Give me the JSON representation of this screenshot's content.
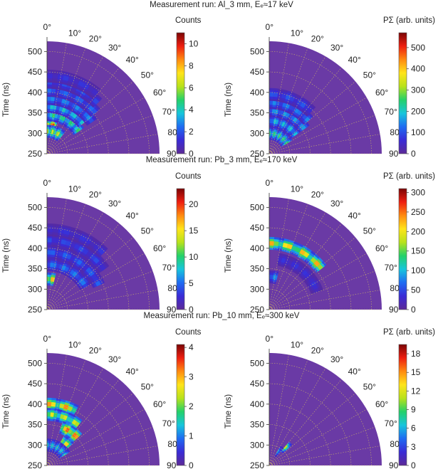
{
  "runs": [
    {
      "title": "Measurement run: Al_3 mm, Eₑ≈17 keV",
      "left": {
        "cb_label": "Counts",
        "cb_max": 11,
        "cb_ticks": [
          0,
          2,
          4,
          6,
          8,
          10
        ]
      },
      "right": {
        "cb_label": "PΣ  (arb. units)",
        "cb_max": 570,
        "cb_ticks": [
          0,
          100,
          200,
          300,
          400,
          500
        ]
      }
    },
    {
      "title": "Measurement run: Pb_3 mm, Eₑ≈170 keV",
      "left": {
        "cb_label": "Counts",
        "cb_max": 23,
        "cb_ticks": [
          0,
          5,
          10,
          15,
          20
        ]
      },
      "right": {
        "cb_label": "PΣ  (arb. units)",
        "cb_max": 310,
        "cb_ticks": [
          0,
          50,
          100,
          150,
          200,
          250,
          300
        ]
      }
    },
    {
      "title": "Measurement run: Pb_10 mm, Eₑ≈300 keV",
      "left": {
        "cb_label": "Counts",
        "cb_max": 4.1,
        "cb_ticks": [
          0,
          1,
          2,
          3,
          4
        ]
      },
      "right": {
        "cb_label": "PΣ  (arb. units)",
        "cb_max": 19.5,
        "cb_ticks": [
          0,
          3,
          6,
          9,
          12,
          15,
          18
        ]
      }
    }
  ],
  "chart_data": {
    "type": "heatmap",
    "coordinate_system": "polar quarter-plane (angle 0°–90°, radius = time)",
    "ylabel": "Time (ns)",
    "time_ticks": [
      250,
      300,
      350,
      400,
      450,
      500
    ],
    "time_range": [
      250,
      525
    ],
    "angle_ticks": [
      "0°",
      "10°",
      "20°",
      "30°",
      "40°",
      "50°",
      "60°",
      "70°",
      "80°",
      "90°"
    ],
    "angle_range": [
      0,
      90
    ],
    "colormap": [
      "#5c2a96",
      "#3a2bd6",
      "#1f6bf2",
      "#17c5dc",
      "#24d16a",
      "#b8e21b",
      "#ffe41a",
      "#ff8a10",
      "#ee1e10",
      "#7a0505"
    ],
    "background_color": "#6a3aa5",
    "panels": [
      {
        "run": "Al_3 mm",
        "quantity": "Counts",
        "max": 11,
        "features": [
          {
            "time": 320,
            "angle_from": 0,
            "angle_to": 18,
            "value": 10
          },
          {
            "time": 305,
            "angle_from": 0,
            "angle_to": 40,
            "value": 7
          },
          {
            "time": 345,
            "angle_from": 0,
            "angle_to": 55,
            "value": 5
          },
          {
            "time": 365,
            "angle_from": 0,
            "angle_to": 50,
            "value": 4
          },
          {
            "time": 385,
            "angle_from": 0,
            "angle_to": 55,
            "value": 3
          },
          {
            "time": 405,
            "angle_from": 0,
            "angle_to": 50,
            "value": 2.5
          },
          {
            "time": 425,
            "angle_from": 0,
            "angle_to": 45,
            "value": 2
          },
          {
            "time": 440,
            "angle_from": 0,
            "angle_to": 40,
            "value": 1.5
          }
        ]
      },
      {
        "run": "Al_3 mm",
        "quantity": "PΣ",
        "max": 570,
        "features": [
          {
            "time": 300,
            "angle_from": 0,
            "angle_to": 60,
            "value": 260
          },
          {
            "time": 330,
            "angle_from": 0,
            "angle_to": 55,
            "value": 200
          },
          {
            "time": 355,
            "angle_from": 0,
            "angle_to": 55,
            "value": 170
          },
          {
            "time": 375,
            "angle_from": 0,
            "angle_to": 50,
            "value": 150
          },
          {
            "time": 395,
            "angle_from": 0,
            "angle_to": 45,
            "value": 110
          }
        ]
      },
      {
        "run": "Pb_3 mm",
        "quantity": "Counts",
        "max": 23,
        "features": [
          {
            "time": 325,
            "angle_from": 0,
            "angle_to": 14,
            "value": 18
          },
          {
            "time": 360,
            "angle_from": 0,
            "angle_to": 60,
            "value": 6
          },
          {
            "time": 390,
            "angle_from": 0,
            "angle_to": 65,
            "value": 5
          },
          {
            "time": 420,
            "angle_from": 0,
            "angle_to": 55,
            "value": 4
          },
          {
            "time": 445,
            "angle_from": 0,
            "angle_to": 45,
            "value": 3
          }
        ]
      },
      {
        "run": "Pb_3 mm",
        "quantity": "PΣ",
        "max": 310,
        "features": [
          {
            "time": 412,
            "angle_from": 0,
            "angle_to": 52,
            "value": 230
          },
          {
            "time": 330,
            "angle_from": 0,
            "angle_to": 14,
            "value": 90
          },
          {
            "time": 375,
            "angle_from": 10,
            "angle_to": 70,
            "value": 40
          }
        ]
      },
      {
        "run": "Pb_10 mm",
        "quantity": "Counts",
        "max": 4.1,
        "features": [
          {
            "time": 400,
            "angle_from": 0,
            "angle_to": 28,
            "value": 3.2
          },
          {
            "time": 375,
            "angle_from": 0,
            "angle_to": 38,
            "value": 2.6
          },
          {
            "time": 350,
            "angle_from": 20,
            "angle_to": 48,
            "value": 3.5
          },
          {
            "time": 320,
            "angle_from": 30,
            "angle_to": 50,
            "value": 3
          },
          {
            "time": 300,
            "angle_from": 0,
            "angle_to": 60,
            "value": 1.5
          }
        ]
      },
      {
        "run": "Pb_10 mm",
        "quantity": "PΣ",
        "max": 19.5,
        "features": [
          {
            "time": 310,
            "angle_from": 40,
            "angle_to": 48,
            "value": 14
          },
          {
            "time": 290,
            "angle_from": 30,
            "angle_to": 40,
            "value": 6
          }
        ]
      }
    ]
  }
}
